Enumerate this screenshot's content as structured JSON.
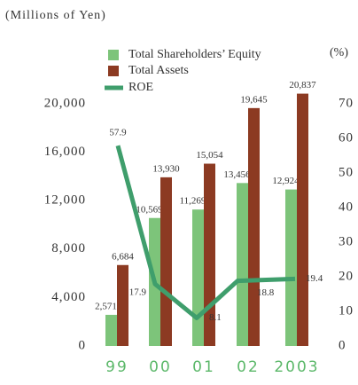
{
  "chart_data": {
    "type": "bar-line",
    "title": "(Millions of Yen)",
    "y2_label": "(%)",
    "categories": [
      "99",
      "00",
      "01",
      "02",
      "2003"
    ],
    "series": [
      {
        "name": "Total Shareholders’ Equity",
        "color": "#7dc47a",
        "type": "bar",
        "values": [
          2571,
          10569,
          11269,
          13456,
          12924
        ],
        "value_labels": [
          "2,571",
          "10,569",
          "11,269",
          "13,456",
          "12,924"
        ]
      },
      {
        "name": "Total Assets",
        "color": "#8c3a22",
        "type": "bar",
        "values": [
          6684,
          13930,
          15054,
          19645,
          20837
        ],
        "value_labels": [
          "6,684",
          "13,930",
          "15,054",
          "19,645",
          "20,837"
        ]
      },
      {
        "name": "ROE",
        "color": "#3f9e6c",
        "type": "line",
        "axis": "y2",
        "values": [
          57.9,
          17.9,
          8.1,
          18.8,
          19.4
        ]
      }
    ],
    "ylim": [
      0,
      20000
    ],
    "yticks": [
      0,
      {
        "value": 4000,
        "label": "4,000"
      },
      {
        "value": 8000,
        "label": "8,000"
      },
      {
        "value": 12000,
        "label": "12,000"
      },
      {
        "value": 16000,
        "label": "16,000"
      },
      {
        "value": 20000,
        "label": "20,000"
      }
    ],
    "y2lim": [
      0,
      70
    ],
    "y2ticks": [
      0,
      10,
      20,
      30,
      40,
      50,
      60,
      70
    ]
  }
}
